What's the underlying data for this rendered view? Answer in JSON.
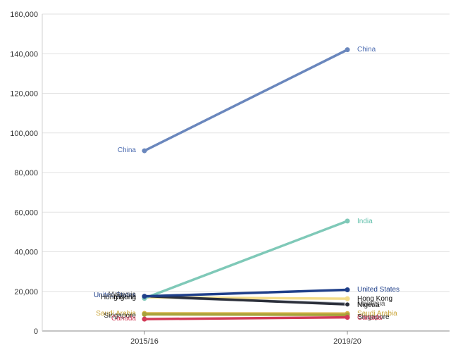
{
  "chart_data": {
    "type": "line",
    "title": "",
    "xlabel": "",
    "ylabel": "",
    "x": [
      "2015/16",
      "2019/20"
    ],
    "ylim": [
      0,
      160000
    ],
    "yticks": [
      0,
      20000,
      40000,
      60000,
      80000,
      100000,
      120000,
      140000,
      160000
    ],
    "ytick_labels": [
      "0",
      "20,000",
      "40,000",
      "60,000",
      "80,000",
      "100,000",
      "120,000",
      "140,000",
      "160,000"
    ],
    "grid": true,
    "legend": "none (series labelled at line ends)",
    "series": [
      {
        "name": "China",
        "values": [
          91000,
          142000
        ],
        "color": "#6a87bd",
        "label_start": "China",
        "label_end": "China"
      },
      {
        "name": "India",
        "values": [
          16500,
          55500
        ],
        "color": "#7fc9b8",
        "label_start": "",
        "label_end": "India"
      },
      {
        "name": "United States",
        "values": [
          17500,
          20800
        ],
        "color": "#1f3f8a",
        "label_start": "United States",
        "label_end": "United States"
      },
      {
        "name": "Hong Kong",
        "values": [
          17000,
          16300
        ],
        "color": "#f3dc8a",
        "label_start": "Hong Kong",
        "label_end": "Hong Kong"
      },
      {
        "name": "Malaysia",
        "values": [
          17200,
          13800
        ],
        "color": "#9aa0ab",
        "label_start": "Malaysia",
        "label_end": "Malaysia"
      },
      {
        "name": "Nigeria",
        "values": [
          17600,
          13400
        ],
        "color": "#2b2f3a",
        "label_start": "Nigeria",
        "label_end": "Nigeria"
      },
      {
        "name": "Saudi Arabia",
        "values": [
          8900,
          8800
        ],
        "color": "#d8b34a",
        "label_start": "Saudi Arabia",
        "label_end": "Saudi Arabia"
      },
      {
        "name": "Singapore",
        "values": [
          8400,
          8100
        ],
        "color": "#a7a23a",
        "label_start": "Singapore",
        "label_end": "Singapore"
      },
      {
        "name": "Canada",
        "values": [
          6000,
          6900
        ],
        "color": "#d23a57",
        "label_start": "Canada",
        "label_end": "Canada"
      }
    ]
  }
}
